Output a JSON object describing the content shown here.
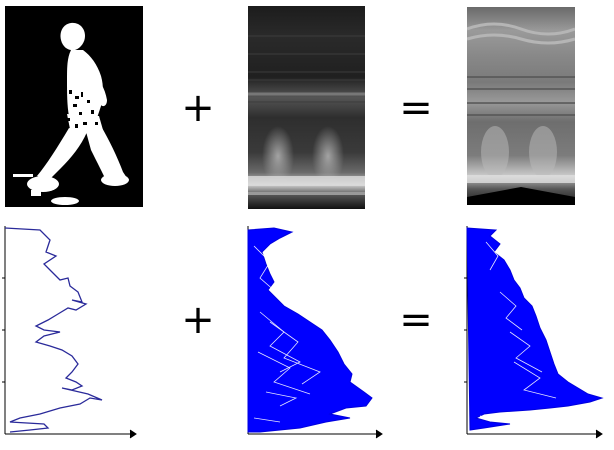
{
  "operators": {
    "plus": "+",
    "equals": "="
  },
  "colors": {
    "background": "#ffffff",
    "silhouette_bg": "#000000",
    "silhouette_fg": "#ffffff",
    "profile_thin": "#1a1a8c",
    "profile_filled": "#0000ff",
    "axis": "#000000"
  },
  "panels": {
    "top": [
      "binary-silhouette",
      "gray-texture-image",
      "fused-gray-image"
    ],
    "bottom": [
      "silhouette-profile-curve",
      "texture-profile-curves",
      "fused-profile-curves"
    ]
  }
}
